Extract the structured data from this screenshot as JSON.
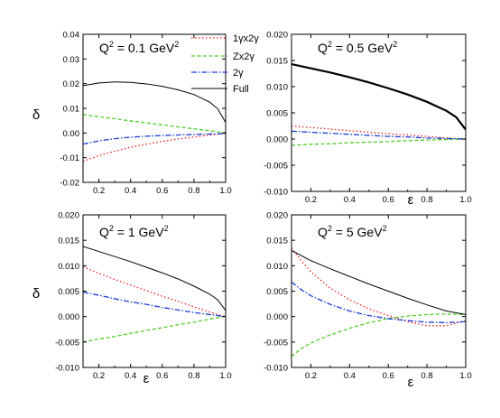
{
  "chart_data": [
    {
      "type": "line",
      "title_main": "Q",
      "title_sup1": "2",
      "title_mid": " = 0.1 GeV",
      "title_sup2": "2",
      "xlabel": "",
      "ylabel": "δ",
      "xlim": [
        0.1,
        1.0
      ],
      "ylim": [
        -0.02,
        0.04
      ],
      "x_ticks": [
        "0.2",
        "0.4",
        "0.6",
        "0.8",
        "1.0"
      ],
      "x_tick_values": [
        0.2,
        0.4,
        0.6,
        0.8,
        1.0
      ],
      "y_ticks": [
        "-0.02",
        "-0.01",
        "0.00",
        "0.01",
        "0.02",
        "0.03",
        "0.04"
      ],
      "y_tick_values": [
        -0.02,
        -0.01,
        0.0,
        0.01,
        0.02,
        0.03,
        0.04
      ],
      "series": [
        {
          "name": "1γx2γ",
          "x": [
            0.1,
            0.2,
            0.3,
            0.4,
            0.5,
            0.6,
            0.7,
            0.8,
            0.9,
            1.0
          ],
          "values": [
            -0.0115,
            -0.0092,
            -0.0074,
            -0.0058,
            -0.0045,
            -0.0034,
            -0.0024,
            -0.0016,
            -0.0008,
            -0.0002
          ]
        },
        {
          "name": "Zx2γ",
          "x": [
            0.1,
            0.2,
            0.3,
            0.4,
            0.5,
            0.6,
            0.7,
            0.8,
            0.9,
            1.0
          ],
          "values": [
            0.0075,
            0.0066,
            0.0058,
            0.0049,
            0.0041,
            0.0033,
            0.0025,
            0.0017,
            0.0009,
            0.0001
          ]
        },
        {
          "name": "2γ",
          "x": [
            0.1,
            0.2,
            0.3,
            0.4,
            0.5,
            0.6,
            0.7,
            0.8,
            0.9,
            1.0
          ],
          "values": [
            -0.0045,
            -0.0032,
            -0.0023,
            -0.0017,
            -0.0013,
            -0.001,
            -0.0008,
            -0.0006,
            -0.0004,
            -0.0002
          ]
        },
        {
          "name": "Full",
          "x": [
            0.1,
            0.2,
            0.3,
            0.4,
            0.5,
            0.6,
            0.7,
            0.8,
            0.9,
            0.95,
            1.0
          ],
          "values": [
            0.0192,
            0.0203,
            0.0207,
            0.0205,
            0.0199,
            0.0189,
            0.0175,
            0.0156,
            0.0125,
            0.0098,
            0.0043
          ]
        }
      ]
    },
    {
      "type": "line",
      "title_main": "Q",
      "title_sup1": "2",
      "title_mid": " = 0.5 GeV",
      "title_sup2": "2",
      "xlabel": "ε",
      "ylabel": "",
      "xlim": [
        0.1,
        1.0
      ],
      "ylim": [
        -0.01,
        0.02
      ],
      "x_ticks": [
        "0.2",
        "0.4",
        "0.6",
        "0.8",
        "1.0"
      ],
      "x_tick_values": [
        0.2,
        0.4,
        0.6,
        0.8,
        1.0
      ],
      "y_ticks": [
        "-0.010",
        "-0.005",
        "0.000",
        "0.005",
        "0.010",
        "0.015",
        "0.020"
      ],
      "y_tick_values": [
        -0.01,
        -0.005,
        0.0,
        0.005,
        0.01,
        0.015,
        0.02
      ],
      "series": [
        {
          "name": "1γx2γ",
          "x": [
            0.1,
            0.2,
            0.3,
            0.4,
            0.5,
            0.6,
            0.7,
            0.8,
            0.9,
            1.0
          ],
          "values": [
            0.0025,
            0.0022,
            0.0019,
            0.0016,
            0.0013,
            0.001,
            0.0008,
            0.0005,
            0.0002,
            0.0
          ]
        },
        {
          "name": "Zx2γ",
          "x": [
            0.1,
            0.2,
            0.3,
            0.4,
            0.5,
            0.6,
            0.7,
            0.8,
            0.9,
            1.0
          ],
          "values": [
            -0.0012,
            -0.001,
            -0.0009,
            -0.0007,
            -0.0006,
            -0.0005,
            -0.0003,
            -0.0002,
            -0.0001,
            0.0
          ]
        },
        {
          "name": "2γ",
          "x": [
            0.1,
            0.2,
            0.3,
            0.4,
            0.5,
            0.6,
            0.7,
            0.8,
            0.9,
            1.0
          ],
          "values": [
            0.0015,
            0.0013,
            0.0011,
            0.0009,
            0.0007,
            0.0005,
            0.0004,
            0.0002,
            0.0001,
            0.0
          ]
        },
        {
          "name": "Full",
          "x": [
            0.1,
            0.2,
            0.3,
            0.4,
            0.5,
            0.6,
            0.7,
            0.8,
            0.9,
            0.95,
            1.0
          ],
          "values": [
            0.0143,
            0.0135,
            0.0127,
            0.0118,
            0.0108,
            0.0097,
            0.0085,
            0.0071,
            0.0054,
            0.0042,
            0.0018
          ]
        }
      ]
    },
    {
      "type": "line",
      "title_main": "Q",
      "title_sup1": "2",
      "title_mid": " = 1 GeV",
      "title_sup2": "2",
      "xlabel": "ε",
      "ylabel": "δ",
      "xlim": [
        0.1,
        1.0
      ],
      "ylim": [
        -0.01,
        0.02
      ],
      "x_ticks": [
        "0.2",
        "0.4",
        "0.6",
        "0.8",
        "1.0"
      ],
      "x_tick_values": [
        0.2,
        0.4,
        0.6,
        0.8,
        1.0
      ],
      "y_ticks": [
        "-0.010",
        "-0.005",
        "0.000",
        "0.005",
        "0.010",
        "0.015",
        "0.020"
      ],
      "y_tick_values": [
        -0.01,
        -0.005,
        0.0,
        0.005,
        0.01,
        0.015,
        0.02
      ],
      "series": [
        {
          "name": "1γx2γ",
          "x": [
            0.1,
            0.2,
            0.3,
            0.4,
            0.5,
            0.6,
            0.7,
            0.8,
            0.9,
            1.0
          ],
          "values": [
            0.0098,
            0.0085,
            0.0073,
            0.0062,
            0.0051,
            0.004,
            0.003,
            0.0019,
            0.0009,
            -0.0001
          ]
        },
        {
          "name": "Zx2γ",
          "x": [
            0.1,
            0.2,
            0.3,
            0.4,
            0.5,
            0.6,
            0.7,
            0.8,
            0.9,
            1.0
          ],
          "values": [
            -0.005,
            -0.0044,
            -0.0039,
            -0.0033,
            -0.0027,
            -0.0022,
            -0.0016,
            -0.0011,
            -0.0005,
            0.0001
          ]
        },
        {
          "name": "2γ",
          "x": [
            0.1,
            0.2,
            0.3,
            0.4,
            0.5,
            0.6,
            0.7,
            0.8,
            0.9,
            1.0
          ],
          "values": [
            0.0048,
            0.0042,
            0.0035,
            0.0029,
            0.0024,
            0.0018,
            0.0013,
            0.0008,
            0.0004,
            0.0
          ]
        },
        {
          "name": "Full",
          "x": [
            0.1,
            0.2,
            0.3,
            0.4,
            0.5,
            0.6,
            0.7,
            0.8,
            0.9,
            0.95,
            1.0
          ],
          "values": [
            0.0138,
            0.0128,
            0.0118,
            0.0108,
            0.0097,
            0.0086,
            0.0074,
            0.006,
            0.0044,
            0.0033,
            0.0012
          ]
        }
      ]
    },
    {
      "type": "line",
      "title_main": "Q",
      "title_sup1": "2",
      "title_mid": " = 5 GeV",
      "title_sup2": "2",
      "xlabel": "ε",
      "ylabel": "",
      "xlim": [
        0.1,
        1.0
      ],
      "ylim": [
        -0.01,
        0.02
      ],
      "x_ticks": [
        "0.2",
        "0.4",
        "0.6",
        "0.8",
        "1.0"
      ],
      "x_tick_values": [
        0.2,
        0.4,
        0.6,
        0.8,
        1.0
      ],
      "y_ticks": [
        "-0.010",
        "-0.005",
        "0.000",
        "0.005",
        "0.010",
        "0.015",
        "0.020"
      ],
      "y_tick_values": [
        -0.01,
        -0.005,
        0.0,
        0.005,
        0.01,
        0.015,
        0.02
      ],
      "series": [
        {
          "name": "1γx2γ",
          "x": [
            0.1,
            0.15,
            0.2,
            0.3,
            0.4,
            0.5,
            0.6,
            0.7,
            0.8,
            0.9,
            1.0
          ],
          "values": [
            0.0135,
            0.011,
            0.0088,
            0.0056,
            0.0033,
            0.0015,
            0.0002,
            -0.001,
            -0.0018,
            -0.0018,
            -0.0008
          ]
        },
        {
          "name": "Zx2γ",
          "x": [
            0.1,
            0.15,
            0.2,
            0.3,
            0.4,
            0.5,
            0.6,
            0.7,
            0.8,
            0.9,
            1.0
          ],
          "values": [
            -0.0078,
            -0.0063,
            -0.0052,
            -0.0036,
            -0.0023,
            -0.0012,
            -0.0004,
            0.0001,
            0.0004,
            0.0005,
            0.0004
          ]
        },
        {
          "name": "2γ",
          "x": [
            0.1,
            0.15,
            0.2,
            0.3,
            0.4,
            0.5,
            0.6,
            0.7,
            0.8,
            0.9,
            1.0
          ],
          "values": [
            0.0068,
            0.0053,
            0.0041,
            0.0024,
            0.0011,
            0.0002,
            -0.0004,
            -0.0008,
            -0.0011,
            -0.0012,
            -0.001
          ]
        },
        {
          "name": "Full",
          "x": [
            0.1,
            0.15,
            0.2,
            0.3,
            0.4,
            0.5,
            0.6,
            0.7,
            0.8,
            0.9,
            1.0
          ],
          "values": [
            0.013,
            0.012,
            0.011,
            0.0094,
            0.0079,
            0.0064,
            0.005,
            0.0036,
            0.0023,
            0.0011,
            0.0004
          ]
        }
      ]
    }
  ],
  "legend": {
    "entries": [
      {
        "label": "1γx2γ",
        "color": "#e8211e",
        "dash": "dot"
      },
      {
        "label": "Zx2γ",
        "color": "#4ccc25",
        "dash": "dash"
      },
      {
        "label": "2γ",
        "color": "#1c3cd6",
        "dash": "dashdot"
      },
      {
        "label": "Full",
        "color": "#000000",
        "dash": "solid"
      }
    ]
  },
  "colors": {
    "1γx2γ": "#e8211e",
    "Zx2γ": "#4ccc25",
    "2γ": "#1c3cd6",
    "Full": "#000000"
  }
}
